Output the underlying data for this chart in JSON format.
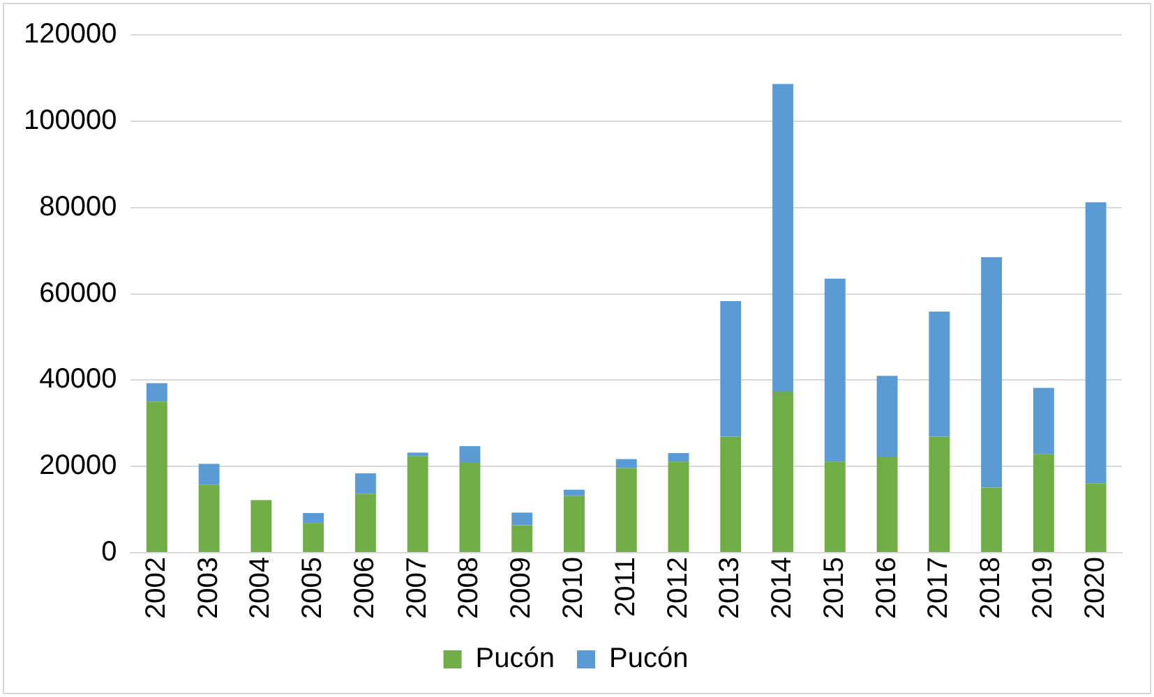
{
  "chart_data": {
    "type": "bar",
    "stacked": true,
    "categories": [
      "2002",
      "2003",
      "2004",
      "2005",
      "2006",
      "2007",
      "2008",
      "2009",
      "2010",
      "2011",
      "2012",
      "2013",
      "2014",
      "2015",
      "2016",
      "2017",
      "2018",
      "2019",
      "2020"
    ],
    "series": [
      {
        "name": "Pucón",
        "color": "#70ad47",
        "values": [
          35000,
          15700,
          12200,
          6900,
          13700,
          22400,
          21000,
          6400,
          13200,
          19600,
          21100,
          26900,
          37300,
          21100,
          22300,
          26900,
          15100,
          22900,
          16100
        ]
      },
      {
        "name": "Pucón",
        "color": "#5b9bd5",
        "values": [
          4300,
          4900,
          0,
          2300,
          4700,
          800,
          3700,
          2900,
          1400,
          2100,
          2000,
          31400,
          71300,
          42400,
          18700,
          29000,
          53400,
          15300,
          65100
        ]
      }
    ],
    "ylim": [
      0,
      120000
    ],
    "yticks": [
      0,
      20000,
      40000,
      60000,
      80000,
      100000,
      120000
    ],
    "grid": "y",
    "legend": "bottom"
  }
}
